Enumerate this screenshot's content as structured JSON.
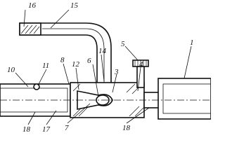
{
  "labels": [
    "16",
    "15",
    "14",
    "5",
    "6",
    "3",
    "4",
    "1",
    "10",
    "11",
    "8",
    "12",
    "18",
    "17",
    "7",
    "18"
  ]
}
